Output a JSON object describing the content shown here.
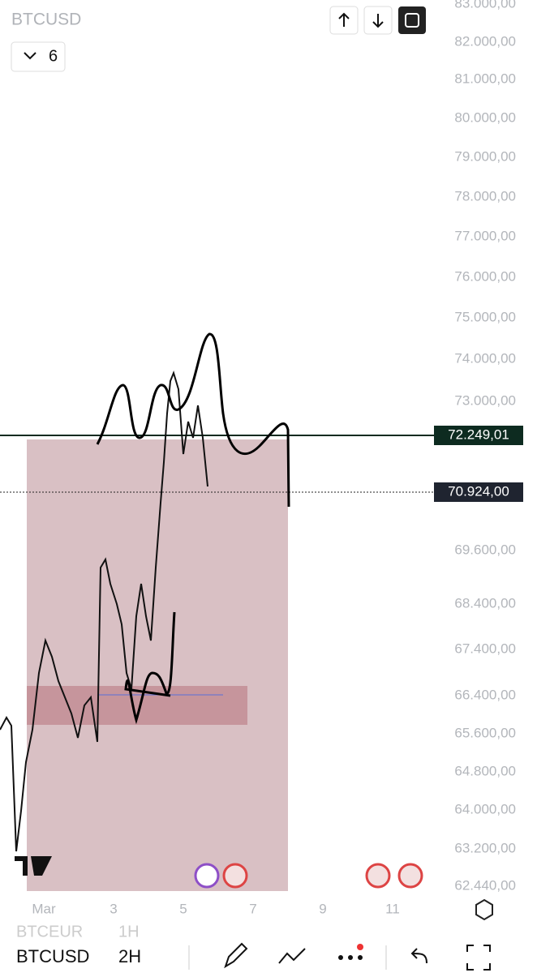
{
  "header": {
    "symbol": "BTCUSD",
    "indicator_count": "6"
  },
  "price_axis": {
    "labels": [
      "83.000,00",
      "82.000,00",
      "81.000,00",
      "80.000,00",
      "79.000,00",
      "78.000,00",
      "77.000,00",
      "76.000,00",
      "75.000,00",
      "74.000,00",
      "73.000,00",
      "69.600,00",
      "68.400,00",
      "67.400,00",
      "66.400,00",
      "65.600,00",
      "64.800,00",
      "64.000,00",
      "63.200,00",
      "62.440,00"
    ]
  },
  "price_tags": {
    "horizontal_line": "72.249,01",
    "last_price": "70.924,00"
  },
  "time_axis": [
    "Mar",
    "3",
    "5",
    "7",
    "9",
    "11"
  ],
  "bottom_bar": {
    "previous_symbol": "BTCEUR",
    "previous_interval": "1H",
    "symbol": "BTCUSD",
    "interval": "2H"
  }
}
